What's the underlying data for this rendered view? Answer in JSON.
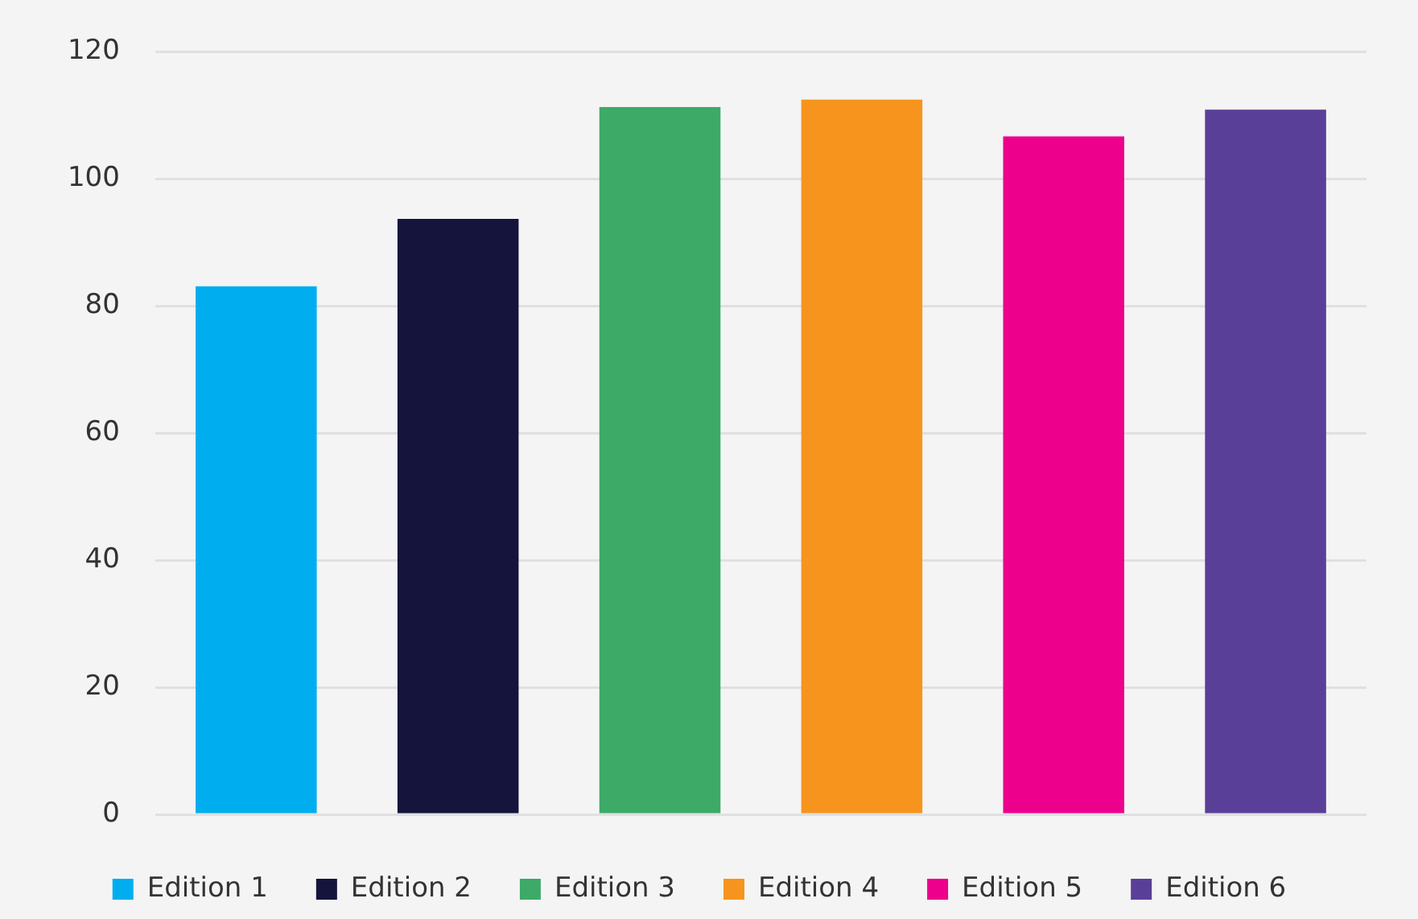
{
  "chart_data": {
    "type": "bar",
    "categories": [
      null
    ],
    "series": [
      {
        "name": "Edition 1",
        "color": "#00aeef",
        "values": [
          83.1
        ]
      },
      {
        "name": "Edition 2",
        "color": "#14143c",
        "values": [
          93.7
        ]
      },
      {
        "name": "Edition 3",
        "color": "#3daa68",
        "values": [
          111.3
        ]
      },
      {
        "name": "Edition 4",
        "color": "#f7941e",
        "values": [
          112.5
        ]
      },
      {
        "name": "Edition 5",
        "color": "#ec008c",
        "values": [
          106.7
        ]
      },
      {
        "name": "Edition 6",
        "color": "#5a3f99",
        "values": [
          110.9
        ]
      }
    ],
    "ylim": [
      0,
      120
    ],
    "yticks": [
      0,
      20,
      40,
      60,
      80,
      100,
      120
    ],
    "grid": "y",
    "legend": "bottom",
    "tick_labels": "y"
  }
}
